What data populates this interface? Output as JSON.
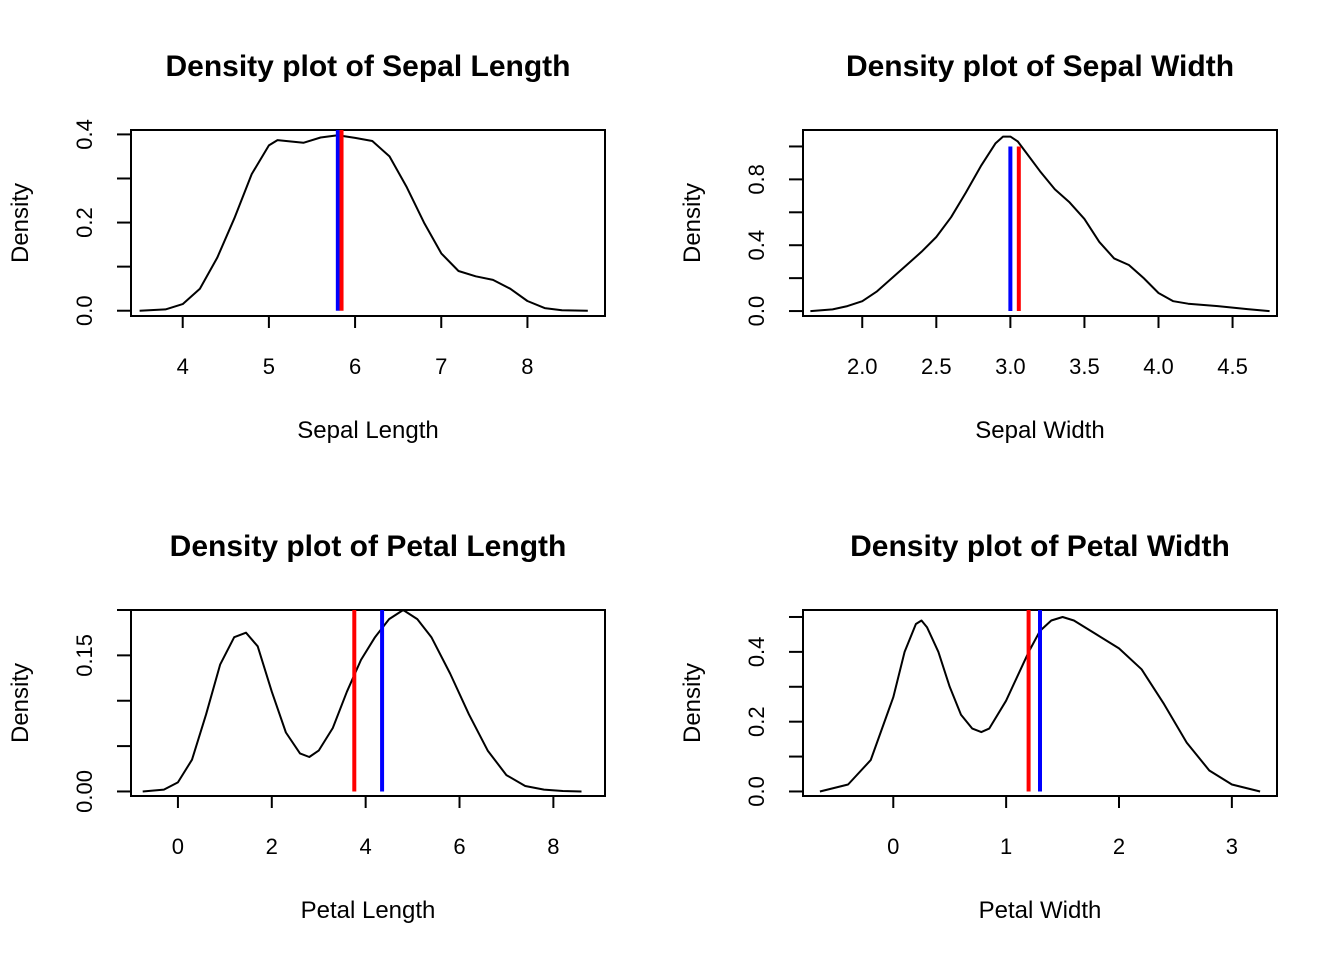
{
  "colors": {
    "density": "#000000",
    "mean_line": "#ff0000",
    "median_line": "#0000ff"
  },
  "chart_data": [
    {
      "type": "line",
      "title": "Density plot of Sepal Length",
      "xlabel": "Sepal Length",
      "ylabel": "Density",
      "xlim": [
        3.4,
        8.9
      ],
      "ylim": [
        -0.012,
        0.41
      ],
      "x_ticks": [
        4,
        5,
        6,
        7,
        8
      ],
      "x_tick_labels": [
        "4",
        "5",
        "6",
        "7",
        "8"
      ],
      "y_ticks": [
        0.0,
        0.1,
        0.2,
        0.3,
        0.4
      ],
      "y_tick_labels": [
        "0.0",
        "",
        "0.2",
        "",
        "0.4"
      ],
      "series": [
        {
          "x": [
            3.5,
            3.8,
            4.0,
            4.2,
            4.4,
            4.6,
            4.8,
            5.0,
            5.1,
            5.2,
            5.4,
            5.6,
            5.8,
            6.0,
            6.2,
            6.4,
            6.6,
            6.8,
            7.0,
            7.2,
            7.4,
            7.6,
            7.8,
            8.0,
            8.2,
            8.4,
            8.7
          ],
          "y": [
            0.0,
            0.003,
            0.015,
            0.05,
            0.12,
            0.21,
            0.31,
            0.375,
            0.387,
            0.385,
            0.381,
            0.393,
            0.398,
            0.392,
            0.385,
            0.35,
            0.28,
            0.2,
            0.13,
            0.09,
            0.078,
            0.07,
            0.05,
            0.022,
            0.006,
            0.001,
            0.0
          ]
        }
      ],
      "vlines": [
        {
          "x": 5.8,
          "y_top": 0.41,
          "color": "blue"
        },
        {
          "x": 5.843,
          "y_top": 0.41,
          "color": "red"
        }
      ]
    },
    {
      "type": "line",
      "title": "Density plot of Sepal Width",
      "xlabel": "Sepal Width",
      "ylabel": "Density",
      "xlim": [
        1.6,
        4.8
      ],
      "ylim": [
        -0.03,
        1.1
      ],
      "x_ticks": [
        2.0,
        2.5,
        3.0,
        3.5,
        4.0,
        4.5
      ],
      "x_tick_labels": [
        "2.0",
        "2.5",
        "3.0",
        "3.5",
        "4.0",
        "4.5"
      ],
      "y_ticks": [
        0.0,
        0.2,
        0.4,
        0.6,
        0.8,
        1.0
      ],
      "y_tick_labels": [
        "0.0",
        "",
        "0.4",
        "",
        "0.8",
        ""
      ],
      "series": [
        {
          "x": [
            1.65,
            1.8,
            1.9,
            2.0,
            2.1,
            2.2,
            2.3,
            2.4,
            2.5,
            2.6,
            2.7,
            2.8,
            2.9,
            2.95,
            3.0,
            3.05,
            3.1,
            3.2,
            3.3,
            3.4,
            3.5,
            3.6,
            3.7,
            3.8,
            3.9,
            4.0,
            4.1,
            4.2,
            4.4,
            4.6,
            4.75
          ],
          "y": [
            0.0,
            0.01,
            0.03,
            0.06,
            0.12,
            0.2,
            0.28,
            0.36,
            0.45,
            0.57,
            0.72,
            0.88,
            1.02,
            1.06,
            1.06,
            1.03,
            0.97,
            0.85,
            0.74,
            0.66,
            0.56,
            0.42,
            0.32,
            0.28,
            0.2,
            0.11,
            0.06,
            0.045,
            0.03,
            0.012,
            0.0
          ]
        }
      ],
      "vlines": [
        {
          "x": 3.0,
          "y_top": 1.0,
          "color": "blue"
        },
        {
          "x": 3.057,
          "y_top": 1.0,
          "color": "red"
        }
      ]
    },
    {
      "type": "line",
      "title": "Density plot of Petal Length",
      "xlabel": "Petal Length",
      "ylabel": "Density",
      "xlim": [
        -1.0,
        9.1
      ],
      "ylim": [
        -0.005,
        0.2
      ],
      "x_ticks": [
        0,
        2,
        4,
        6,
        8
      ],
      "x_tick_labels": [
        "0",
        "2",
        "4",
        "6",
        "8"
      ],
      "y_ticks": [
        0.0,
        0.05,
        0.1,
        0.15,
        0.2
      ],
      "y_tick_labels": [
        "0.00",
        "",
        "",
        "0.15",
        ""
      ],
      "series": [
        {
          "x": [
            -0.75,
            -0.3,
            0.0,
            0.3,
            0.6,
            0.9,
            1.2,
            1.45,
            1.7,
            2.0,
            2.3,
            2.6,
            2.8,
            3.0,
            3.3,
            3.6,
            3.9,
            4.2,
            4.5,
            4.8,
            5.1,
            5.4,
            5.8,
            6.2,
            6.6,
            7.0,
            7.4,
            7.8,
            8.2,
            8.6
          ],
          "y": [
            0.0,
            0.002,
            0.01,
            0.035,
            0.085,
            0.14,
            0.17,
            0.175,
            0.16,
            0.11,
            0.065,
            0.042,
            0.038,
            0.045,
            0.07,
            0.11,
            0.145,
            0.17,
            0.19,
            0.2,
            0.19,
            0.17,
            0.13,
            0.085,
            0.045,
            0.018,
            0.006,
            0.002,
            0.0005,
            0.0
          ]
        }
      ],
      "vlines": [
        {
          "x": 3.758,
          "y_top": 0.2,
          "color": "red"
        },
        {
          "x": 4.35,
          "y_top": 0.2,
          "color": "blue"
        }
      ]
    },
    {
      "type": "line",
      "title": "Density plot of Petal Width",
      "xlabel": "Petal Width",
      "ylabel": "Density",
      "xlim": [
        -0.8,
        3.4
      ],
      "ylim": [
        -0.013,
        0.52
      ],
      "x_ticks": [
        0,
        1,
        2,
        3
      ],
      "x_tick_labels": [
        "0",
        "1",
        "2",
        "3"
      ],
      "y_ticks": [
        0.0,
        0.1,
        0.2,
        0.3,
        0.4,
        0.5
      ],
      "y_tick_labels": [
        "0.0",
        "",
        "0.2",
        "",
        "0.4",
        ""
      ],
      "series": [
        {
          "x": [
            -0.65,
            -0.4,
            -0.2,
            0.0,
            0.1,
            0.2,
            0.25,
            0.3,
            0.4,
            0.5,
            0.6,
            0.7,
            0.78,
            0.85,
            1.0,
            1.1,
            1.2,
            1.3,
            1.4,
            1.5,
            1.6,
            1.8,
            2.0,
            2.2,
            2.4,
            2.6,
            2.8,
            3.0,
            3.25
          ],
          "y": [
            0.0,
            0.02,
            0.09,
            0.27,
            0.4,
            0.48,
            0.49,
            0.47,
            0.4,
            0.3,
            0.22,
            0.18,
            0.17,
            0.18,
            0.26,
            0.33,
            0.4,
            0.46,
            0.49,
            0.5,
            0.49,
            0.45,
            0.41,
            0.35,
            0.25,
            0.14,
            0.06,
            0.02,
            0.0
          ]
        }
      ],
      "vlines": [
        {
          "x": 1.199,
          "y_top": 0.52,
          "color": "red"
        },
        {
          "x": 1.3,
          "y_top": 0.52,
          "color": "blue"
        }
      ]
    }
  ]
}
